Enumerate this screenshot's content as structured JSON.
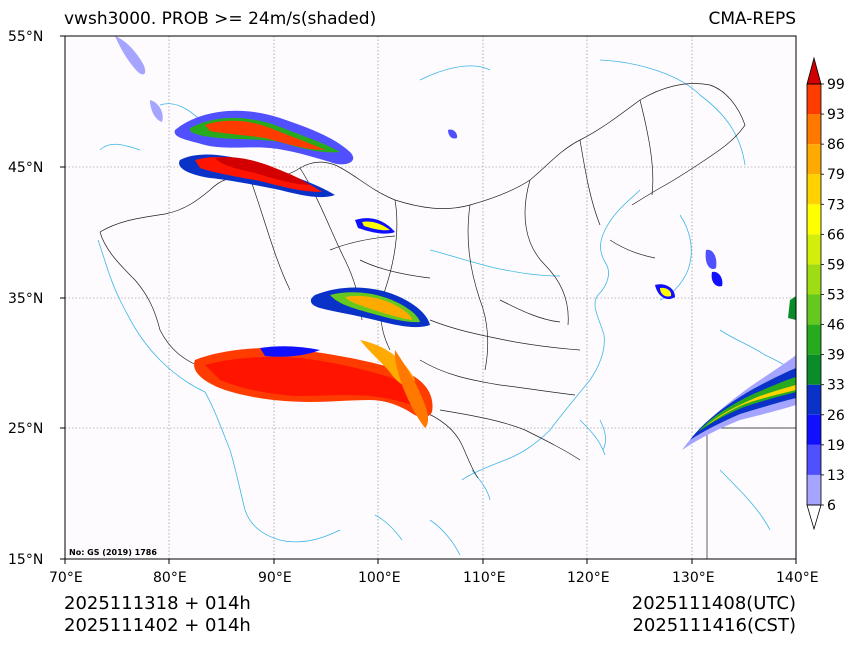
{
  "header": {
    "title": "vwsh3000. PROB >= 24m/s(shaded)",
    "model": "CMA-REPS"
  },
  "footer": {
    "init_utc": "2025111318  +  014h",
    "init_cst": "2025111402  +  014h",
    "valid_utc": "2025111408(UTC)",
    "valid_cst": "2025111416(CST)"
  },
  "map": {
    "lon_labels": [
      "70°E",
      "80°E",
      "90°E",
      "100°E",
      "110°E",
      "120°E",
      "130°E",
      "140°E"
    ],
    "lat_labels": [
      "55°N",
      "45°N",
      "35°N",
      "25°N",
      "15°N"
    ],
    "stamp": "No: GS (2019) 1786"
  },
  "colorbar": {
    "levels": [
      "6",
      "13",
      "19",
      "26",
      "33",
      "39",
      "46",
      "53",
      "59",
      "66",
      "73",
      "79",
      "86",
      "93",
      "99"
    ],
    "colors": [
      "#ffffff",
      "#a5a5ff",
      "#5050ff",
      "#1010ff",
      "#0a32c8",
      "#0a8c28",
      "#28aa1e",
      "#64c81e",
      "#a0dc14",
      "#d2ee0a",
      "#ffff00",
      "#ffd200",
      "#ffaa00",
      "#ff7800",
      "#ff3c00",
      "#ff1400",
      "#d20000"
    ]
  },
  "palette": {
    "coast": "#3fb6e6",
    "border": "#222222",
    "grid": "#7f7f7f"
  }
}
